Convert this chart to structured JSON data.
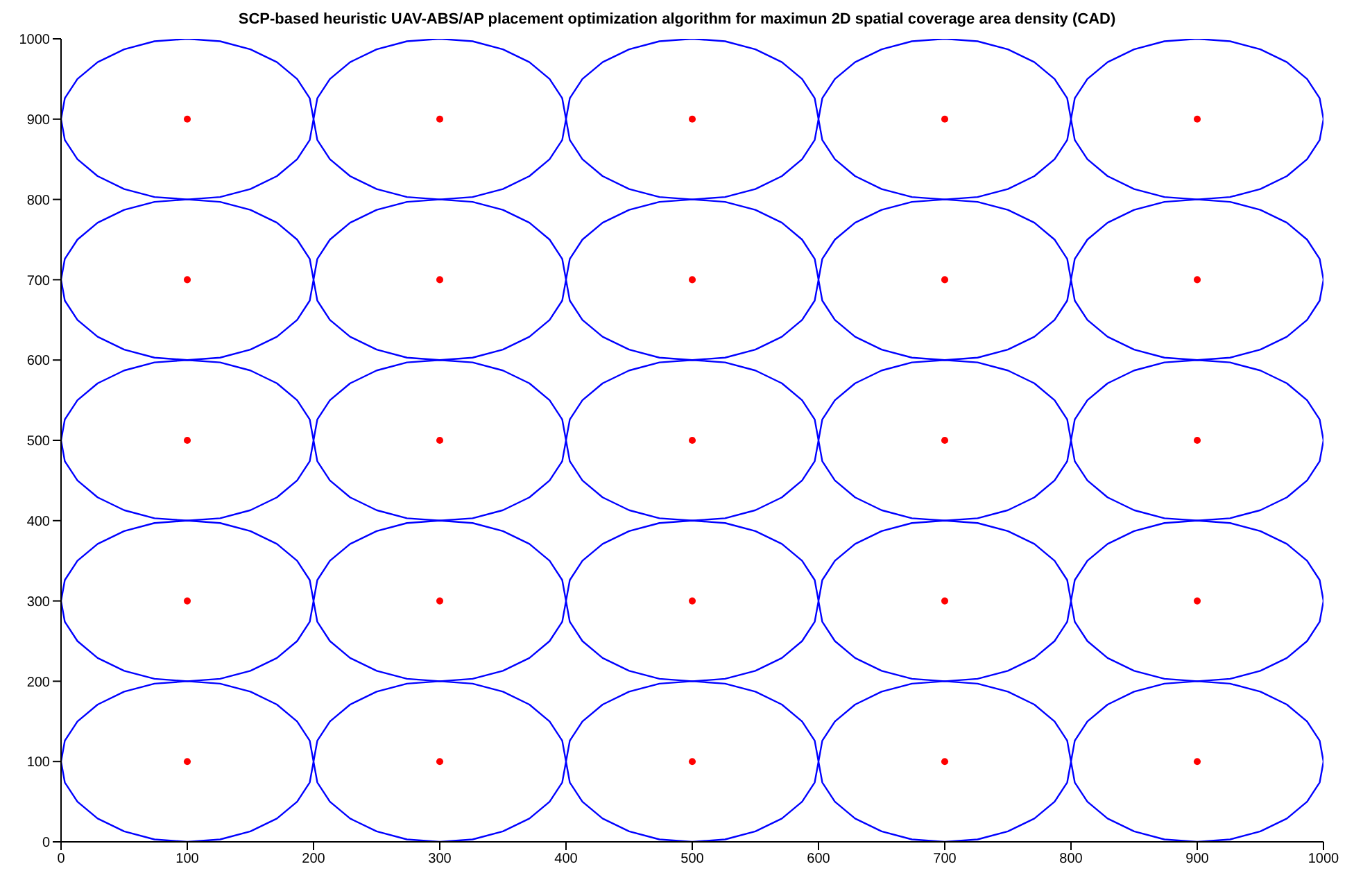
{
  "chart_data": {
    "type": "line",
    "title": "SCP-based heuristic UAV-ABS/AP placement optimization algorithm for maximun 2D spatial coverage area density (CAD)",
    "xlim": [
      0,
      1000
    ],
    "ylim": [
      0,
      1000
    ],
    "xticks": [
      0,
      100,
      200,
      300,
      400,
      500,
      600,
      700,
      800,
      900,
      1000
    ],
    "yticks": [
      0,
      100,
      200,
      300,
      400,
      500,
      600,
      700,
      800,
      900,
      1000
    ],
    "grid": false,
    "marker": "none",
    "series": [
      {
        "type": "scatter",
        "marker": "circle",
        "color": "#ff0000",
        "x": [
          100,
          300,
          500,
          700,
          900,
          100,
          300,
          500,
          700,
          900,
          100,
          300,
          500,
          700,
          900,
          100,
          300,
          500,
          700,
          900,
          100,
          300,
          500,
          700,
          900
        ],
        "values": [
          900,
          900,
          900,
          900,
          900,
          700,
          700,
          700,
          700,
          700,
          500,
          500,
          500,
          500,
          500,
          300,
          300,
          300,
          300,
          300,
          100,
          100,
          100,
          100,
          100
        ]
      },
      {
        "color": "#0000ff",
        "x": [
          0,
          3,
          13,
          29,
          50,
          74,
          100,
          126,
          150,
          171,
          187,
          197,
          200,
          203,
          213,
          229,
          250,
          274,
          300,
          326,
          350,
          371,
          387,
          397,
          400,
          403,
          413,
          429,
          450,
          474,
          500,
          526,
          550,
          571,
          587,
          597,
          600,
          603,
          613,
          629,
          650,
          674,
          700,
          726,
          750,
          771,
          787,
          797,
          800,
          803,
          813,
          829,
          850,
          874,
          900,
          926,
          950,
          971,
          987,
          997,
          1000,
          null,
          0,
          3,
          13,
          29,
          50,
          74,
          100,
          126,
          150,
          171,
          187,
          197,
          200,
          203,
          213,
          229,
          250,
          274,
          300,
          326,
          350,
          371,
          387,
          397,
          400,
          403,
          413,
          429,
          450,
          474,
          500,
          526,
          550,
          571,
          587,
          597,
          600,
          603,
          613,
          629,
          650,
          674,
          700,
          726,
          750,
          771,
          787,
          797,
          800,
          803,
          813,
          829,
          850,
          874,
          900,
          926,
          950,
          971,
          987,
          997,
          1000
        ],
        "values": [
          100,
          126,
          150,
          171,
          187,
          197,
          200,
          197,
          187,
          171,
          150,
          126,
          100,
          126,
          150,
          171,
          187,
          197,
          200,
          197,
          187,
          171,
          150,
          126,
          100,
          126,
          150,
          171,
          187,
          197,
          200,
          197,
          187,
          171,
          150,
          126,
          100,
          126,
          150,
          171,
          187,
          197,
          200,
          197,
          187,
          171,
          150,
          126,
          100,
          126,
          150,
          171,
          187,
          197,
          200,
          197,
          187,
          171,
          150,
          126,
          100,
          null,
          100,
          74,
          50,
          29,
          13,
          3,
          0,
          3,
          13,
          29,
          50,
          74,
          100,
          74,
          50,
          29,
          13,
          3,
          0,
          3,
          13,
          29,
          50,
          74,
          100,
          74,
          50,
          29,
          13,
          3,
          0,
          3,
          13,
          29,
          50,
          74,
          100,
          74,
          50,
          29,
          13,
          3,
          0,
          3,
          13,
          29,
          50,
          74,
          100,
          74,
          50,
          29,
          13,
          3,
          0,
          3,
          13,
          29,
          50,
          74,
          100
        ]
      },
      {
        "color": "#0000ff",
        "x": [
          0,
          3,
          13,
          29,
          50,
          74,
          100,
          126,
          150,
          171,
          187,
          197,
          200,
          203,
          213,
          229,
          250,
          274,
          300,
          326,
          350,
          371,
          387,
          397,
          400,
          403,
          413,
          429,
          450,
          474,
          500,
          526,
          550,
          571,
          587,
          597,
          600,
          603,
          613,
          629,
          650,
          674,
          700,
          726,
          750,
          771,
          787,
          797,
          800,
          803,
          813,
          829,
          850,
          874,
          900,
          926,
          950,
          971,
          987,
          997,
          1000,
          null,
          0,
          3,
          13,
          29,
          50,
          74,
          100,
          126,
          150,
          171,
          187,
          197,
          200,
          203,
          213,
          229,
          250,
          274,
          300,
          326,
          350,
          371,
          387,
          397,
          400,
          403,
          413,
          429,
          450,
          474,
          500,
          526,
          550,
          571,
          587,
          597,
          600,
          603,
          613,
          629,
          650,
          674,
          700,
          726,
          750,
          771,
          787,
          797,
          800,
          803,
          813,
          829,
          850,
          874,
          900,
          926,
          950,
          971,
          987,
          997,
          1000
        ],
        "values": [
          300,
          326,
          350,
          371,
          387,
          397,
          400,
          397,
          387,
          371,
          350,
          326,
          300,
          326,
          350,
          371,
          387,
          397,
          400,
          397,
          387,
          371,
          350,
          326,
          300,
          326,
          350,
          371,
          387,
          397,
          400,
          397,
          387,
          371,
          350,
          326,
          300,
          326,
          350,
          371,
          387,
          397,
          400,
          397,
          387,
          371,
          350,
          326,
          300,
          326,
          350,
          371,
          387,
          397,
          400,
          397,
          387,
          371,
          350,
          326,
          300,
          null,
          300,
          274,
          250,
          229,
          213,
          203,
          200,
          203,
          213,
          229,
          250,
          274,
          300,
          274,
          250,
          229,
          213,
          203,
          200,
          203,
          213,
          229,
          250,
          274,
          300,
          274,
          250,
          229,
          213,
          203,
          200,
          203,
          213,
          229,
          250,
          274,
          300,
          274,
          250,
          229,
          213,
          203,
          200,
          203,
          213,
          229,
          250,
          274,
          300,
          274,
          250,
          229,
          213,
          203,
          200,
          203,
          213,
          229,
          250,
          274,
          300
        ]
      },
      {
        "color": "#0000ff",
        "x": [
          0,
          3,
          13,
          29,
          50,
          74,
          100,
          126,
          150,
          171,
          187,
          197,
          200,
          203,
          213,
          229,
          250,
          274,
          300,
          326,
          350,
          371,
          387,
          397,
          400,
          403,
          413,
          429,
          450,
          474,
          500,
          526,
          550,
          571,
          587,
          597,
          600,
          603,
          613,
          629,
          650,
          674,
          700,
          726,
          750,
          771,
          787,
          797,
          800,
          803,
          813,
          829,
          850,
          874,
          900,
          926,
          950,
          971,
          987,
          997,
          1000,
          null,
          0,
          3,
          13,
          29,
          50,
          74,
          100,
          126,
          150,
          171,
          187,
          197,
          200,
          203,
          213,
          229,
          250,
          274,
          300,
          326,
          350,
          371,
          387,
          397,
          400,
          403,
          413,
          429,
          450,
          474,
          500,
          526,
          550,
          571,
          587,
          597,
          600,
          603,
          613,
          629,
          650,
          674,
          700,
          726,
          750,
          771,
          787,
          797,
          800,
          803,
          813,
          829,
          850,
          874,
          900,
          926,
          950,
          971,
          987,
          997,
          1000
        ],
        "values": [
          500,
          526,
          550,
          571,
          587,
          597,
          600,
          597,
          587,
          571,
          550,
          526,
          500,
          526,
          550,
          571,
          587,
          597,
          600,
          597,
          587,
          571,
          550,
          526,
          500,
          526,
          550,
          571,
          587,
          597,
          600,
          597,
          587,
          571,
          550,
          526,
          500,
          526,
          550,
          571,
          587,
          597,
          600,
          597,
          587,
          571,
          550,
          526,
          500,
          526,
          550,
          571,
          587,
          597,
          600,
          597,
          587,
          571,
          550,
          526,
          500,
          null,
          500,
          474,
          450,
          429,
          413,
          403,
          400,
          403,
          413,
          429,
          450,
          474,
          500,
          474,
          450,
          429,
          413,
          403,
          400,
          403,
          413,
          429,
          450,
          474,
          500,
          474,
          450,
          429,
          413,
          403,
          400,
          403,
          413,
          429,
          450,
          474,
          500,
          474,
          450,
          429,
          413,
          403,
          400,
          403,
          413,
          429,
          450,
          474,
          500,
          474,
          450,
          429,
          413,
          403,
          400,
          403,
          413,
          429,
          450,
          474,
          500
        ]
      },
      {
        "color": "#0000ff",
        "x": [
          0,
          3,
          13,
          29,
          50,
          74,
          100,
          126,
          150,
          171,
          187,
          197,
          200,
          203,
          213,
          229,
          250,
          274,
          300,
          326,
          350,
          371,
          387,
          397,
          400,
          403,
          413,
          429,
          450,
          474,
          500,
          526,
          550,
          571,
          587,
          597,
          600,
          603,
          613,
          629,
          650,
          674,
          700,
          726,
          750,
          771,
          787,
          797,
          800,
          803,
          813,
          829,
          850,
          874,
          900,
          926,
          950,
          971,
          987,
          997,
          1000,
          null,
          0,
          3,
          13,
          29,
          50,
          74,
          100,
          126,
          150,
          171,
          187,
          197,
          200,
          203,
          213,
          229,
          250,
          274,
          300,
          326,
          350,
          371,
          387,
          397,
          400,
          403,
          413,
          429,
          450,
          474,
          500,
          526,
          550,
          571,
          587,
          597,
          600,
          603,
          613,
          629,
          650,
          674,
          700,
          726,
          750,
          771,
          787,
          797,
          800,
          803,
          813,
          829,
          850,
          874,
          900,
          926,
          950,
          971,
          987,
          997,
          1000
        ],
        "values": [
          700,
          726,
          750,
          771,
          787,
          797,
          800,
          797,
          787,
          771,
          750,
          726,
          700,
          726,
          750,
          771,
          787,
          797,
          800,
          797,
          787,
          771,
          750,
          726,
          700,
          726,
          750,
          771,
          787,
          797,
          800,
          797,
          787,
          771,
          750,
          726,
          700,
          726,
          750,
          771,
          787,
          797,
          800,
          797,
          787,
          771,
          750,
          726,
          700,
          726,
          750,
          771,
          787,
          797,
          800,
          797,
          787,
          771,
          750,
          726,
          700,
          null,
          700,
          674,
          650,
          629,
          613,
          603,
          600,
          603,
          613,
          629,
          650,
          674,
          700,
          674,
          650,
          629,
          613,
          603,
          600,
          603,
          613,
          629,
          650,
          674,
          700,
          674,
          650,
          629,
          613,
          603,
          600,
          603,
          613,
          629,
          650,
          674,
          700,
          674,
          650,
          629,
          613,
          603,
          600,
          603,
          613,
          629,
          650,
          674,
          700,
          674,
          650,
          629,
          613,
          603,
          600,
          603,
          613,
          629,
          650,
          674,
          700
        ]
      },
      {
        "color": "#0000ff",
        "x": [
          0,
          3,
          13,
          29,
          50,
          74,
          100,
          126,
          150,
          171,
          187,
          197,
          200,
          203,
          213,
          229,
          250,
          274,
          300,
          326,
          350,
          371,
          387,
          397,
          400,
          403,
          413,
          429,
          450,
          474,
          500,
          526,
          550,
          571,
          587,
          597,
          600,
          603,
          613,
          629,
          650,
          674,
          700,
          726,
          750,
          771,
          787,
          797,
          800,
          803,
          813,
          829,
          850,
          874,
          900,
          926,
          950,
          971,
          987,
          997,
          1000,
          null,
          0,
          3,
          13,
          29,
          50,
          74,
          100,
          126,
          150,
          171,
          187,
          197,
          200,
          203,
          213,
          229,
          250,
          274,
          300,
          326,
          350,
          371,
          387,
          397,
          400,
          403,
          413,
          429,
          450,
          474,
          500,
          526,
          550,
          571,
          587,
          597,
          600,
          603,
          613,
          629,
          650,
          674,
          700,
          726,
          750,
          771,
          787,
          797,
          800,
          803,
          813,
          829,
          850,
          874,
          900,
          926,
          950,
          971,
          987,
          997,
          1000
        ],
        "values": [
          900,
          926,
          950,
          971,
          987,
          997,
          1000,
          997,
          987,
          971,
          950,
          926,
          900,
          926,
          950,
          971,
          987,
          997,
          1000,
          997,
          987,
          971,
          950,
          926,
          900,
          926,
          950,
          971,
          987,
          997,
          1000,
          997,
          987,
          971,
          950,
          926,
          900,
          926,
          950,
          971,
          987,
          997,
          1000,
          997,
          987,
          971,
          950,
          926,
          900,
          926,
          950,
          971,
          987,
          997,
          1000,
          997,
          987,
          971,
          950,
          926,
          900,
          null,
          900,
          874,
          850,
          829,
          813,
          803,
          800,
          803,
          813,
          829,
          850,
          874,
          900,
          874,
          850,
          829,
          813,
          803,
          800,
          803,
          813,
          829,
          850,
          874,
          900,
          874,
          850,
          829,
          813,
          803,
          800,
          803,
          813,
          829,
          850,
          874,
          900,
          874,
          850,
          829,
          813,
          803,
          800,
          803,
          813,
          829,
          850,
          874,
          900,
          874,
          850,
          829,
          813,
          803,
          800,
          803,
          813,
          829,
          850,
          874,
          900
        ]
      }
    ]
  }
}
